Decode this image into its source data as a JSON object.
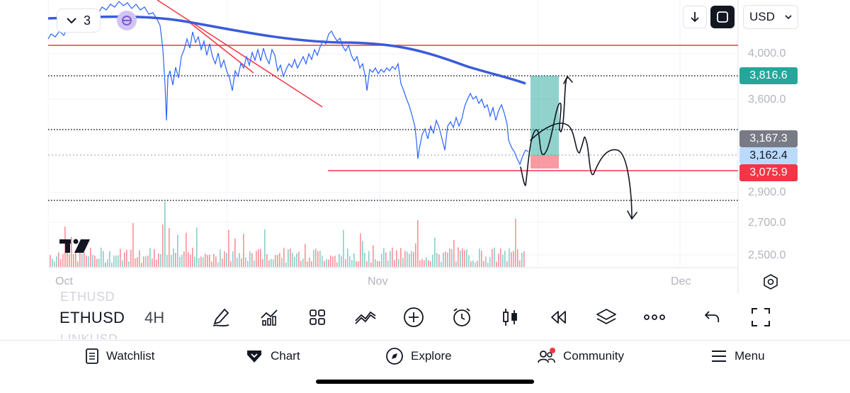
{
  "toolbar_top": {
    "interval_count": "3",
    "currency": "USD"
  },
  "price_axis": {
    "labels": [
      "4,000.0",
      "3,600.0",
      "2,900.0",
      "2,700.0",
      "2,500.0"
    ],
    "tags": [
      {
        "value": "3,816.6",
        "bg": "#26a69a",
        "fg": "#ffffff"
      },
      {
        "value": "3,167.3",
        "bg": "#787b86",
        "fg": "#ffffff"
      },
      {
        "value": "3,162.4",
        "bg": "#bbd9fb",
        "fg": "#131722"
      },
      {
        "value": "3,075.9",
        "bg": "#f23645",
        "fg": "#ffffff"
      }
    ]
  },
  "time_axis": {
    "labels": [
      "Oct",
      "Nov",
      "Dec"
    ]
  },
  "symbol_bar": {
    "prev_symbol": "ETHUSD",
    "symbol": "ETHUSD",
    "next_symbol": "LINKUSD",
    "interval": "4H",
    "tools": [
      "pen-icon",
      "indicators-icon",
      "templates-icon",
      "compare-icon",
      "add-icon",
      "alert-icon",
      "candle-style-icon",
      "replay-icon",
      "layers-icon",
      "more-icon",
      "undo-icon",
      "fullscreen-icon"
    ]
  },
  "tabs": [
    {
      "label": "Watchlist",
      "icon": "watchlist-icon"
    },
    {
      "label": "Chart",
      "icon": "chart-icon"
    },
    {
      "label": "Explore",
      "icon": "explore-icon"
    },
    {
      "label": "Community",
      "icon": "community-icon"
    },
    {
      "label": "Menu",
      "icon": "menu-icon"
    }
  ],
  "colors": {
    "bull": "#26a69a",
    "bear": "#f23645",
    "price_line": "#2962ff",
    "ma_line": "#3a5bd9",
    "accent": "#9c7cf0"
  }
}
